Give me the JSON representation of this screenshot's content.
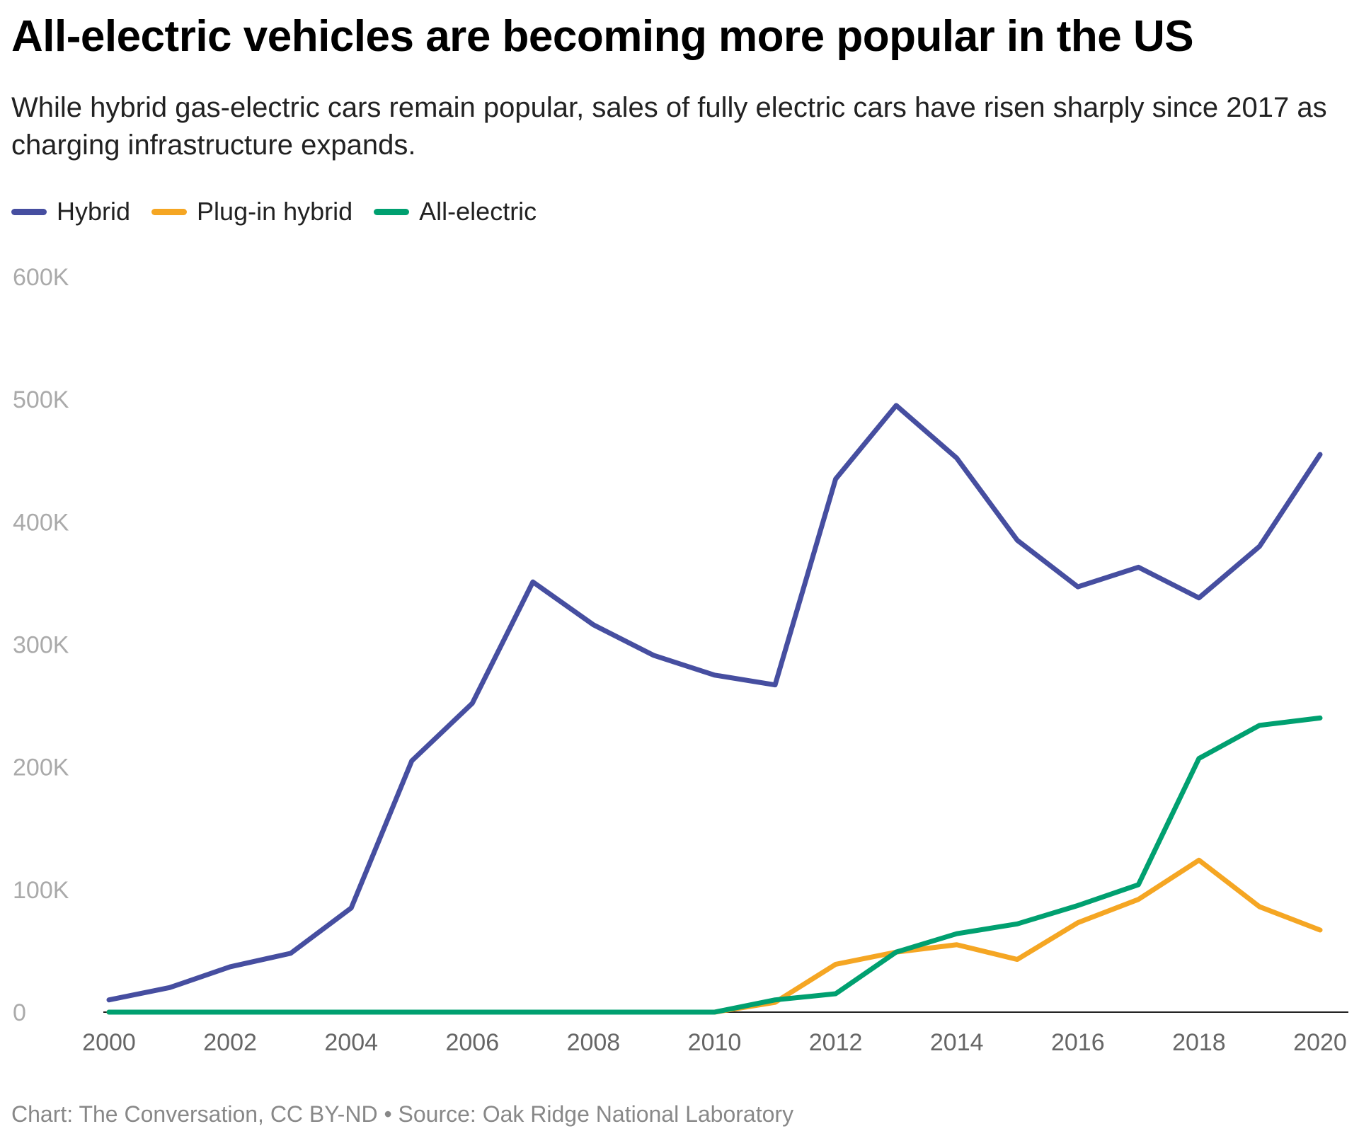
{
  "title": "All-electric vehicles are becoming more popular in the US",
  "subtitle": "While hybrid gas-electric cars remain popular, sales of fully electric cars have risen sharply since 2017 as charging infrastructure expands.",
  "footer": "Chart: The Conversation, CC BY-ND • Source: Oak Ridge National Laboratory",
  "chart_data": {
    "type": "line",
    "title": "All-electric vehicles are becoming more popular in the US",
    "xlabel": "",
    "ylabel": "",
    "x": [
      2000,
      2001,
      2002,
      2003,
      2004,
      2005,
      2006,
      2007,
      2008,
      2009,
      2010,
      2011,
      2012,
      2013,
      2014,
      2015,
      2016,
      2017,
      2018,
      2019,
      2020
    ],
    "xticks": [
      "2000",
      "2002",
      "2004",
      "2006",
      "2008",
      "2010",
      "2012",
      "2014",
      "2016",
      "2018",
      "2020"
    ],
    "yticks": [
      "0",
      "100K",
      "200K",
      "300K",
      "400K",
      "500K",
      "600K"
    ],
    "ylim": [
      0,
      600000
    ],
    "xlim": [
      2000,
      2020
    ],
    "grid": false,
    "legend": "top-left",
    "series": [
      {
        "name": "Hybrid",
        "color": "#464ea0",
        "values": [
          10000,
          20000,
          37000,
          48000,
          85000,
          205000,
          252000,
          351000,
          316000,
          291000,
          275000,
          267000,
          435000,
          495000,
          452000,
          385000,
          347000,
          363000,
          338000,
          380000,
          455000
        ]
      },
      {
        "name": "Plug-in hybrid",
        "color": "#f5a623",
        "values": [
          0,
          0,
          0,
          0,
          0,
          0,
          0,
          0,
          0,
          0,
          0,
          8000,
          39000,
          49000,
          55000,
          43000,
          73000,
          92000,
          124000,
          86000,
          67000
        ]
      },
      {
        "name": "All-electric",
        "color": "#00a070",
        "values": [
          0,
          0,
          0,
          0,
          0,
          0,
          0,
          0,
          0,
          0,
          0,
          10000,
          15000,
          49000,
          64000,
          72000,
          87000,
          104000,
          207000,
          234000,
          240000
        ]
      }
    ]
  }
}
